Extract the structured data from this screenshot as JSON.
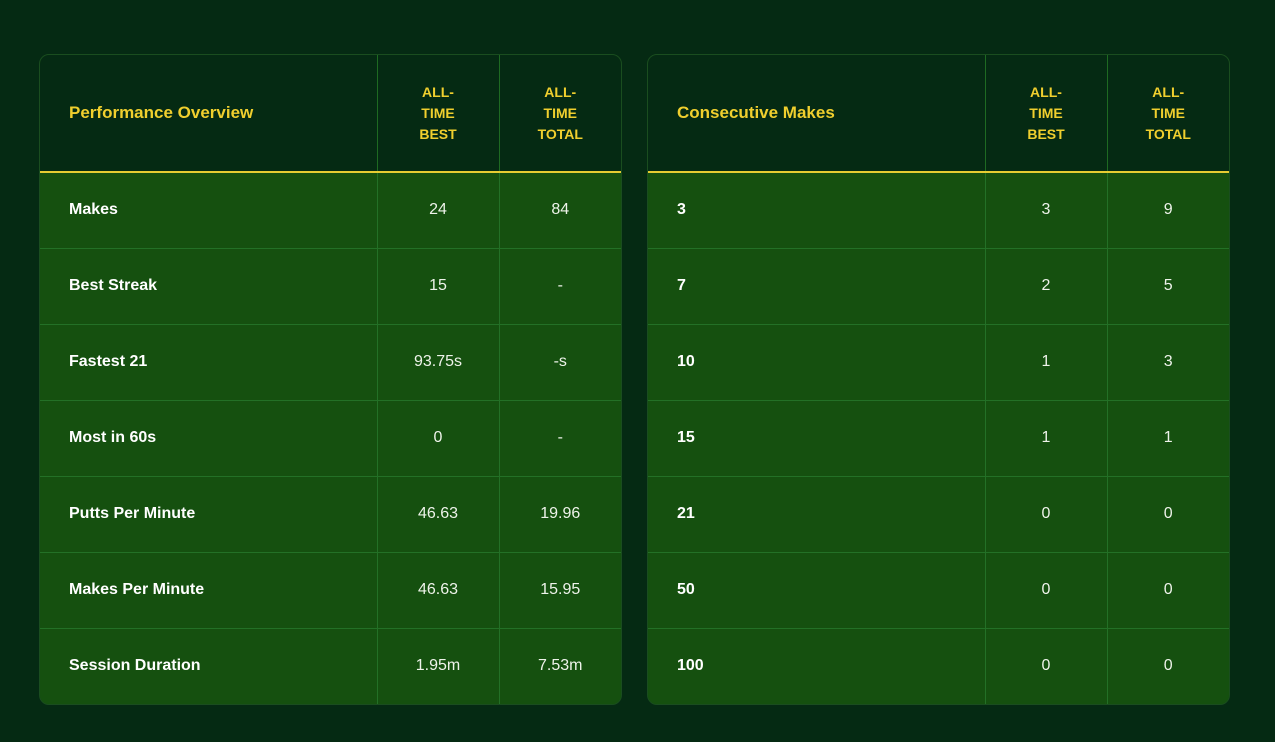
{
  "performance": {
    "title": "Performance Overview",
    "col_best": "ALL-TIME BEST",
    "col_total": "ALL-TIME TOTAL",
    "rows": [
      {
        "label": "Makes",
        "best": "24",
        "total": "84"
      },
      {
        "label": "Best Streak",
        "best": "15",
        "total": "-"
      },
      {
        "label": "Fastest 21",
        "best": "93.75s",
        "total": "-s"
      },
      {
        "label": "Most in 60s",
        "best": "0",
        "total": "-"
      },
      {
        "label": "Putts Per Minute",
        "best": "46.63",
        "total": "19.96"
      },
      {
        "label": "Makes Per Minute",
        "best": "46.63",
        "total": "15.95"
      },
      {
        "label": "Session Duration",
        "best": "1.95m",
        "total": "7.53m"
      }
    ]
  },
  "consecutive": {
    "title": "Consecutive Makes",
    "col_best": "ALL-TIME BEST",
    "col_total": "ALL-TIME TOTAL",
    "rows": [
      {
        "label": "3",
        "best": "3",
        "total": "9"
      },
      {
        "label": "7",
        "best": "2",
        "total": "5"
      },
      {
        "label": "10",
        "best": "1",
        "total": "3"
      },
      {
        "label": "15",
        "best": "1",
        "total": "1"
      },
      {
        "label": "21",
        "best": "0",
        "total": "0"
      },
      {
        "label": "50",
        "best": "0",
        "total": "0"
      },
      {
        "label": "100",
        "best": "0",
        "total": "0"
      }
    ]
  },
  "colors": {
    "page_background": "#052a13",
    "header_background": "#052a13",
    "row_background": "#15500f",
    "accent_yellow": "#f0cf2e"
  }
}
